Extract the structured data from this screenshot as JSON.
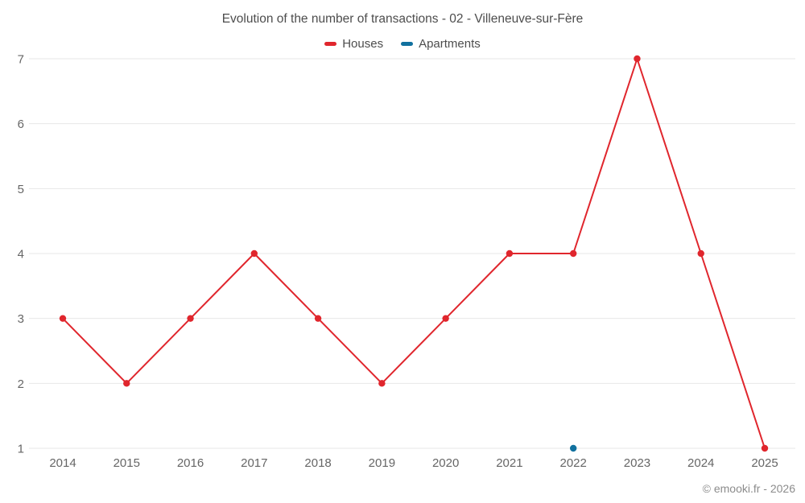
{
  "title": "Evolution of the number of transactions - 02 - Villeneuve-sur-Fère",
  "footer": {
    "copyright": "© emooki.fr - 2026"
  },
  "colors": {
    "houses": "#e0262d",
    "apartments": "#11719f",
    "grid": "#e7e7e7",
    "tick_text": "#666666",
    "title_text": "#4d4d4d"
  },
  "legend": {
    "items": [
      {
        "id": "houses",
        "label": "Houses",
        "color": "#e0262d"
      },
      {
        "id": "apartments",
        "label": "Apartments",
        "color": "#11719f"
      }
    ]
  },
  "chart_data": {
    "type": "line",
    "title": "Evolution of the number of transactions - 02 - Villeneuve-sur-Fère",
    "categories": [
      "2014",
      "2015",
      "2016",
      "2017",
      "2018",
      "2019",
      "2020",
      "2021",
      "2022",
      "2023",
      "2024",
      "2025"
    ],
    "series": [
      {
        "name": "Houses",
        "color": "#e0262d",
        "values": [
          3,
          2,
          3,
          4,
          3,
          2,
          3,
          4,
          4,
          7,
          4,
          1
        ]
      },
      {
        "name": "Apartments",
        "color": "#11719f",
        "values": [
          null,
          null,
          null,
          null,
          null,
          null,
          null,
          null,
          1,
          null,
          null,
          null
        ]
      }
    ],
    "xlabel": "",
    "ylabel": "",
    "ylim": [
      1,
      7
    ],
    "yticks": [
      1,
      2,
      3,
      4,
      5,
      6,
      7
    ],
    "grid": "horizontal",
    "legend_position": "top"
  }
}
